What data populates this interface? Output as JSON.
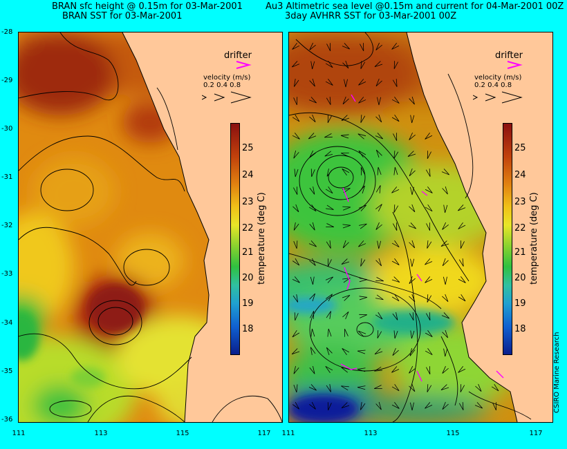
{
  "titles": {
    "left_line1": "BRAN sfc height @ 0.15m for 03-Mar-2001",
    "left_line2": "BRAN SST for 03-Mar-2001",
    "right_line1": "Au3 Altimetric sea level  @0.15m and current for 04-Mar-2001 00Z",
    "right_line2": "3day AVHRR SST for 03-Mar-2001 00Z"
  },
  "axes": {
    "lat_ticks": [
      "-28",
      "-29",
      "-30",
      "-31",
      "-32",
      "-33",
      "-34",
      "-35",
      "-36"
    ],
    "lon_ticks": [
      "111",
      "113",
      "115",
      "117"
    ]
  },
  "legend": {
    "drifter_label": "drifter",
    "velocity_label": "velocity (m/s)",
    "velocity_values": "0.2 0.4 0.8",
    "drifter_color": "#ff00ff"
  },
  "colorbar": {
    "label": "temperature (deg C)",
    "ticks": [
      "25",
      "24",
      "23",
      "22",
      "21",
      "20",
      "19",
      "18"
    ],
    "range": [
      17.3,
      25.7
    ]
  },
  "credit": "CSIRO Marine Research",
  "colors": {
    "background": "#00ffff",
    "land": "#ffc89a",
    "warm": "#a01414",
    "cool": "#0a1e8c"
  }
}
